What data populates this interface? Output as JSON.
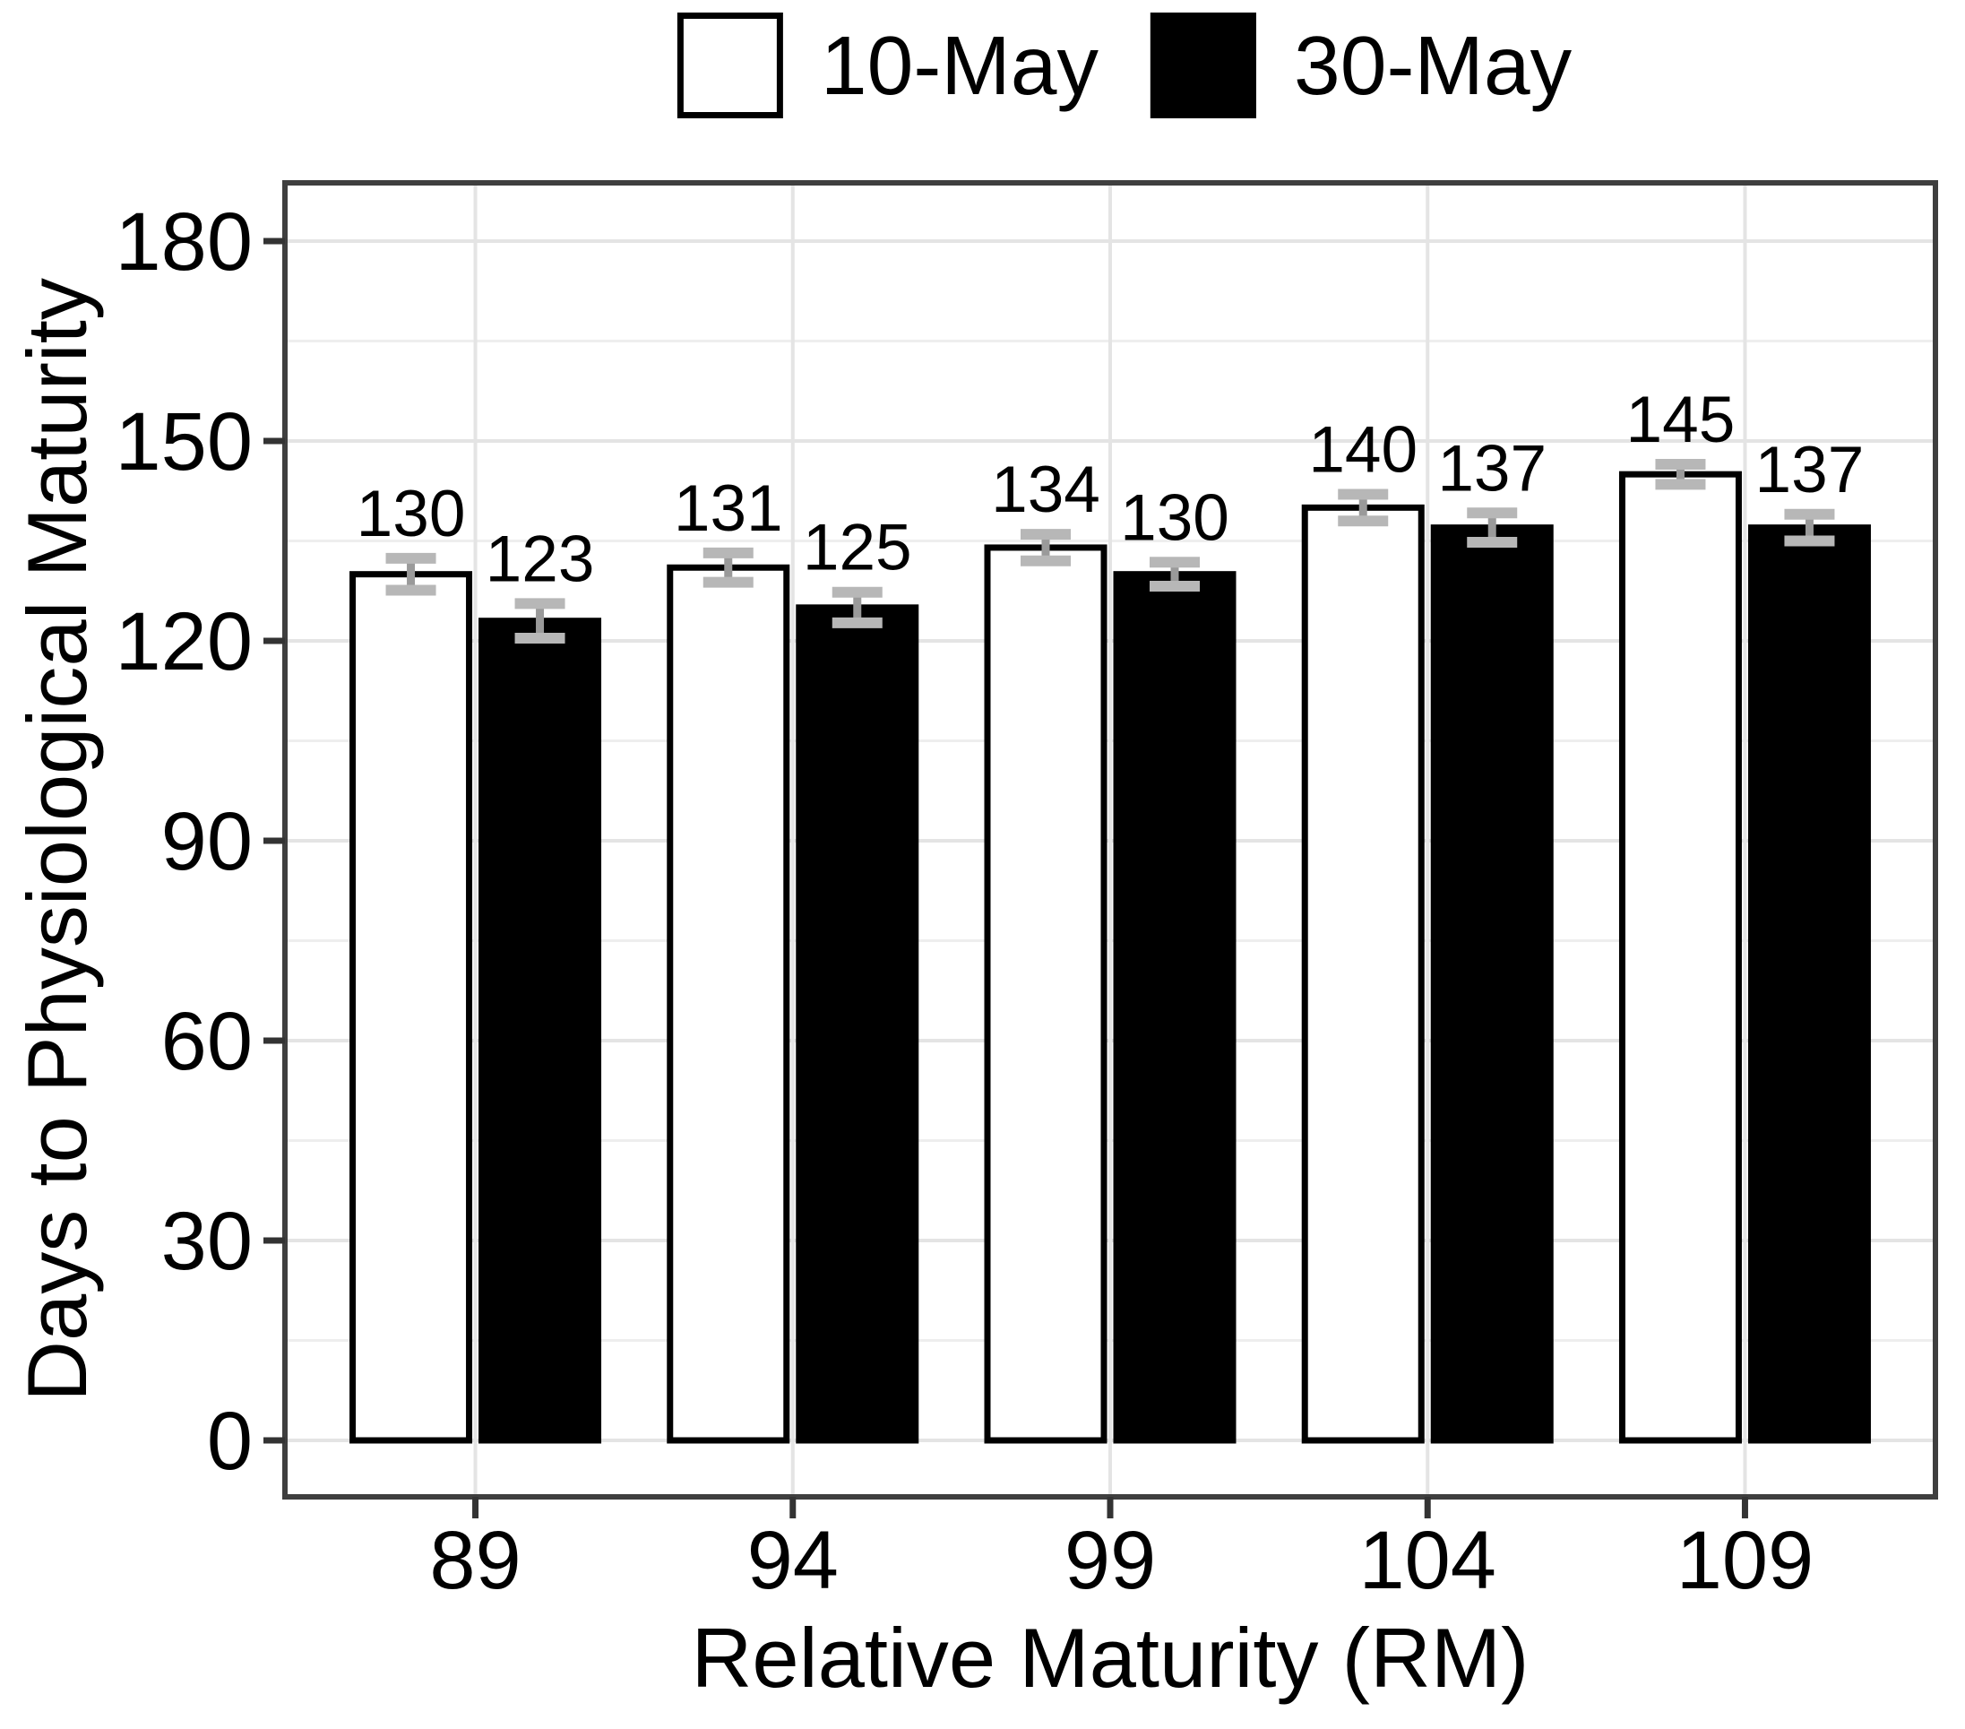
{
  "chart_data": {
    "type": "bar",
    "title": "",
    "xlabel": "Relative Maturity (RM)",
    "ylabel": "Days to Physiological Maturity",
    "categories": [
      "89",
      "94",
      "99",
      "104",
      "109"
    ],
    "series": [
      {
        "name": "10-May",
        "fill": "#ffffff",
        "values": [
          130,
          131,
          134,
          140,
          145
        ],
        "se": [
          2.4,
          2.2,
          2.0,
          2.0,
          1.5
        ]
      },
      {
        "name": "30-May",
        "fill": "#000000",
        "values": [
          123,
          125,
          130,
          137,
          137
        ],
        "se": [
          2.6,
          2.3,
          1.8,
          2.2,
          2.0
        ]
      }
    ],
    "bar_value_labels": [
      [
        "130",
        "131",
        "134",
        "140",
        "145"
      ],
      [
        "123",
        "125",
        "130",
        "137",
        "137"
      ]
    ],
    "error_bars": true,
    "y_ticks": [
      0,
      30,
      60,
      90,
      120,
      150,
      180
    ],
    "y_minor_gridlines": [
      15,
      45,
      75,
      105,
      135,
      165
    ],
    "ylim": [
      0,
      180
    ],
    "grid": "major-and-minor-horizontal, vertical-at-category-centers",
    "legend_position": "top-center",
    "style": {
      "background": "#ffffff",
      "bar_stroke": "#000000",
      "gridline_major": "#e4e4e4",
      "gridline_minor": "#eeeeee",
      "panel_border": "#3f3f3f",
      "tick_mark": "#333333",
      "error_bar_line": "#9a9a9a",
      "error_bar_cap": "#b7b7b7",
      "text": "#000000"
    }
  }
}
